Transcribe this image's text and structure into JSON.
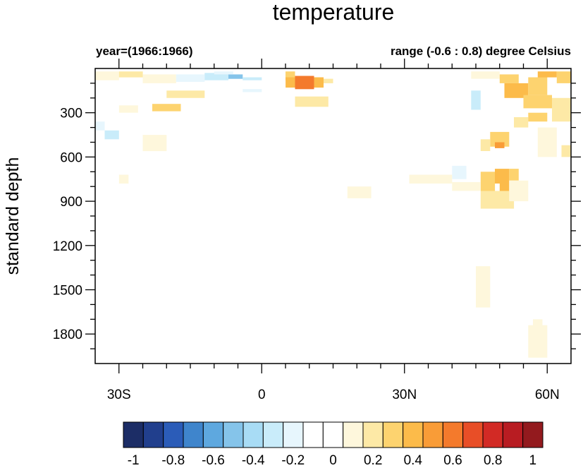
{
  "chart_data": {
    "type": "heatmap",
    "title": "temperature",
    "subtitle_left": "year=(1966:1966)",
    "subtitle_right": "range (-0.6 : 0.8) degree Celsius",
    "ylabel": "standard depth",
    "xlim": [
      -35,
      65
    ],
    "ylim": [
      2000,
      0
    ],
    "x_ticks": [
      {
        "value": -30,
        "label": "30S"
      },
      {
        "value": 0,
        "label": "0"
      },
      {
        "value": 30,
        "label": "30N"
      },
      {
        "value": 60,
        "label": "60N"
      }
    ],
    "y_ticks": [
      300,
      600,
      900,
      1200,
      1500,
      1800
    ],
    "colorbar": {
      "levels": [
        -1,
        -0.9,
        -0.8,
        -0.7,
        -0.6,
        -0.5,
        -0.4,
        -0.3,
        -0.2,
        -0.1,
        0,
        0.1,
        0.2,
        0.3,
        0.4,
        0.5,
        0.6,
        0.7,
        0.8,
        0.9,
        1
      ],
      "labels": [
        "-1",
        "-0.8",
        "-0.6",
        "-0.4",
        "-0.2",
        "0",
        "0.2",
        "0.4",
        "0.6",
        "0.8",
        "1"
      ],
      "colors": [
        "#1c2d66",
        "#213f8d",
        "#2b5cb8",
        "#3f85cc",
        "#5ea8df",
        "#85c4ea",
        "#a8dcf5",
        "#c9ecfa",
        "#e7f6fd",
        "#ffffff",
        "#ffffff",
        "#fef7dc",
        "#fde9a6",
        "#fdd36f",
        "#fcbb4a",
        "#f99c37",
        "#f47a2c",
        "#e84e27",
        "#d22a25",
        "#b81c22",
        "#931a1e"
      ]
    },
    "cells": [
      {
        "x": [
          -35,
          -30
        ],
        "y": [
          20,
          80
        ],
        "value": 0.15
      },
      {
        "x": [
          -30,
          -25
        ],
        "y": [
          20,
          60
        ],
        "value": 0.25
      },
      {
        "x": [
          -25,
          -18
        ],
        "y": [
          40,
          100
        ],
        "value": 0.1
      },
      {
        "x": [
          -35,
          -28
        ],
        "y": [
          100,
          150
        ],
        "value": -0.1
      },
      {
        "x": [
          -18,
          -12
        ],
        "y": [
          40,
          90
        ],
        "value": -0.15
      },
      {
        "x": [
          -12,
          -7
        ],
        "y": [
          30,
          90
        ],
        "value": -0.25
      },
      {
        "x": [
          -7,
          -4
        ],
        "y": [
          40,
          70
        ],
        "value": -0.45
      },
      {
        "x": [
          -4,
          0
        ],
        "y": [
          60,
          110
        ],
        "value": -0.3
      },
      {
        "x": [
          -4,
          0
        ],
        "y": [
          110,
          160
        ],
        "value": -0.15
      },
      {
        "x": [
          -20,
          -12
        ],
        "y": [
          150,
          200
        ],
        "value": 0.2
      },
      {
        "x": [
          -23,
          -19
        ],
        "y": [
          240,
          290
        ],
        "value": 0.35
      },
      {
        "x": [
          -19,
          -17
        ],
        "y": [
          240,
          290
        ],
        "value": 0.3
      },
      {
        "x": [
          -30,
          -26
        ],
        "y": [
          250,
          300
        ],
        "value": 0.15
      },
      {
        "x": [
          -25,
          -18
        ],
        "y": [
          300,
          350
        ],
        "value": -0.08
      },
      {
        "x": [
          -35,
          -33
        ],
        "y": [
          360,
          420
        ],
        "value": -0.2
      },
      {
        "x": [
          -33,
          -30
        ],
        "y": [
          420,
          480
        ],
        "value": -0.25
      },
      {
        "x": [
          -25,
          -20
        ],
        "y": [
          450,
          560
        ],
        "value": 0.12
      },
      {
        "x": [
          -35,
          -30
        ],
        "y": [
          650,
          720
        ],
        "value": -0.08
      },
      {
        "x": [
          -30,
          -28
        ],
        "y": [
          720,
          780
        ],
        "value": 0.1
      },
      {
        "x": [
          5,
          7
        ],
        "y": [
          20,
          60
        ],
        "value": 0.3
      },
      {
        "x": [
          5,
          7
        ],
        "y": [
          60,
          130
        ],
        "value": 0.45
      },
      {
        "x": [
          7,
          11
        ],
        "y": [
          50,
          140
        ],
        "value": 0.65
      },
      {
        "x": [
          11,
          13
        ],
        "y": [
          60,
          130
        ],
        "value": 0.4
      },
      {
        "x": [
          13,
          15
        ],
        "y": [
          70,
          100
        ],
        "value": 0.2
      },
      {
        "x": [
          7,
          14
        ],
        "y": [
          190,
          260
        ],
        "value": 0.22
      },
      {
        "x": [
          -12,
          5
        ],
        "y": [
          80,
          140
        ],
        "value": -0.08
      },
      {
        "x": [
          19,
          24
        ],
        "y": [
          200,
          270
        ],
        "value": 0.08
      },
      {
        "x": [
          24,
          28
        ],
        "y": [
          220,
          280
        ],
        "value": -0.08
      },
      {
        "x": [
          17,
          25
        ],
        "y": [
          420,
          560
        ],
        "value": -0.05
      },
      {
        "x": [
          10,
          16
        ],
        "y": [
          820,
          880
        ],
        "value": 0.08
      },
      {
        "x": [
          18,
          23
        ],
        "y": [
          800,
          880
        ],
        "value": 0.1
      },
      {
        "x": [
          27,
          30
        ],
        "y": [
          1060,
          1180
        ],
        "value": -0.05
      },
      {
        "x": [
          35,
          40
        ],
        "y": [
          900,
          1150
        ],
        "value": -0.05
      },
      {
        "x": [
          42,
          44
        ],
        "y": [
          100,
          250
        ],
        "value": -0.1
      },
      {
        "x": [
          44,
          46
        ],
        "y": [
          150,
          280
        ],
        "value": -0.25
      },
      {
        "x": [
          33,
          42
        ],
        "y": [
          260,
          300
        ],
        "value": -0.08
      },
      {
        "x": [
          44,
          50
        ],
        "y": [
          20,
          70
        ],
        "value": 0.1
      },
      {
        "x": [
          50,
          54
        ],
        "y": [
          40,
          100
        ],
        "value": 0.35
      },
      {
        "x": [
          51,
          56
        ],
        "y": [
          100,
          200
        ],
        "value": 0.4
      },
      {
        "x": [
          56,
          60
        ],
        "y": [
          60,
          180
        ],
        "value": 0.35
      },
      {
        "x": [
          58,
          62
        ],
        "y": [
          20,
          60
        ],
        "value": 0.45
      },
      {
        "x": [
          62,
          65
        ],
        "y": [
          20,
          100
        ],
        "value": 0.3
      },
      {
        "x": [
          55,
          61
        ],
        "y": [
          180,
          270
        ],
        "value": 0.3
      },
      {
        "x": [
          61,
          65
        ],
        "y": [
          200,
          360
        ],
        "value": 0.28
      },
      {
        "x": [
          53,
          56
        ],
        "y": [
          330,
          400
        ],
        "value": 0.2
      },
      {
        "x": [
          56,
          60
        ],
        "y": [
          300,
          360
        ],
        "value": 0.35
      },
      {
        "x": [
          48,
          52
        ],
        "y": [
          430,
          530
        ],
        "value": 0.35
      },
      {
        "x": [
          49,
          51
        ],
        "y": [
          500,
          540
        ],
        "value": 0.5
      },
      {
        "x": [
          46,
          48
        ],
        "y": [
          480,
          560
        ],
        "value": 0.2
      },
      {
        "x": [
          58,
          62
        ],
        "y": [
          400,
          600
        ],
        "value": 0.15
      },
      {
        "x": [
          63,
          65
        ],
        "y": [
          520,
          600
        ],
        "value": 0.2
      },
      {
        "x": [
          40,
          43
        ],
        "y": [
          660,
          750
        ],
        "value": -0.2
      },
      {
        "x": [
          43,
          46
        ],
        "y": [
          660,
          700
        ],
        "value": -0.1
      },
      {
        "x": [
          46,
          49
        ],
        "y": [
          700,
          830
        ],
        "value": 0.3
      },
      {
        "x": [
          49,
          52
        ],
        "y": [
          680,
          780
        ],
        "value": 0.45
      },
      {
        "x": [
          50,
          52
        ],
        "y": [
          780,
          850
        ],
        "value": 0.4
      },
      {
        "x": [
          52,
          54
        ],
        "y": [
          680,
          760
        ],
        "value": 0.35
      },
      {
        "x": [
          40,
          46
        ],
        "y": [
          770,
          830
        ],
        "value": 0.15
      },
      {
        "x": [
          46,
          53
        ],
        "y": [
          830,
          950
        ],
        "value": 0.2
      },
      {
        "x": [
          52,
          56
        ],
        "y": [
          760,
          900
        ],
        "value": 0.18
      },
      {
        "x": [
          31,
          40
        ],
        "y": [
          720,
          780
        ],
        "value": 0.1
      },
      {
        "x": [
          45,
          48
        ],
        "y": [
          1340,
          1620
        ],
        "value": 0.12
      },
      {
        "x": [
          43,
          45
        ],
        "y": [
          1400,
          1480
        ],
        "value": 0.08
      },
      {
        "x": [
          35,
          36
        ],
        "y": [
          1540,
          1570
        ],
        "value": 0.08
      },
      {
        "x": [
          51,
          52
        ],
        "y": [
          1530,
          1570
        ],
        "value": -0.1
      },
      {
        "x": [
          56,
          60
        ],
        "y": [
          1740,
          1960
        ],
        "value": 0.12
      },
      {
        "x": [
          57,
          59
        ],
        "y": [
          1700,
          1750
        ],
        "value": 0.1
      },
      {
        "x": [
          61,
          63
        ],
        "y": [
          1780,
          1840
        ],
        "value": 0.08
      },
      {
        "x": [
          -28,
          -24
        ],
        "y": [
          900,
          950
        ],
        "value": 0.06
      },
      {
        "x": [
          -10,
          -6
        ],
        "y": [
          20,
          40
        ],
        "value": -0.15
      }
    ]
  }
}
